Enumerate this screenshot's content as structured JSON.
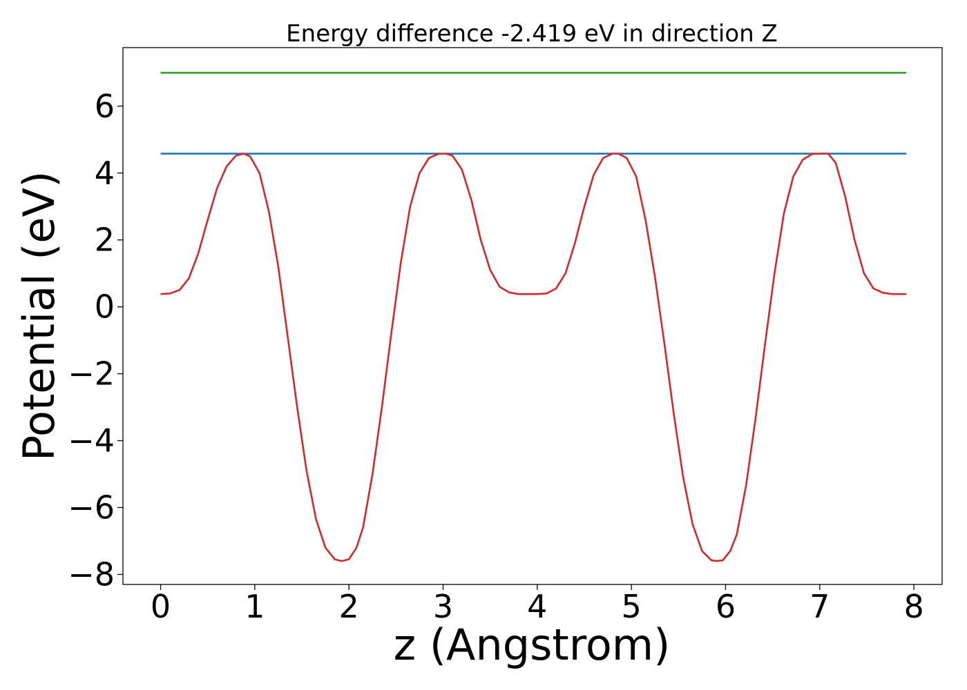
{
  "chart_data": {
    "type": "line",
    "title": "Energy difference -2.419 eV in direction Z",
    "xlabel": "z (Angstrom)",
    "ylabel": "Potential (eV)",
    "xlim": [
      -0.4,
      8.3
    ],
    "ylim": [
      -8.3,
      7.75
    ],
    "xticks": [
      0,
      1,
      2,
      3,
      4,
      5,
      6,
      7,
      8
    ],
    "xtick_labels": [
      "0",
      "1",
      "2",
      "3",
      "4",
      "5",
      "6",
      "7",
      "8"
    ],
    "yticks": [
      -8,
      -6,
      -4,
      -2,
      0,
      2,
      4,
      6
    ],
    "ytick_labels": [
      "−8",
      "−6",
      "−4",
      "−2",
      "0",
      "2",
      "4",
      "6"
    ],
    "grid": false,
    "series": [
      {
        "color": "#2ca02c",
        "x": [
          0,
          7.92
        ],
        "y": [
          7.0,
          7.0
        ]
      },
      {
        "color": "#1f77b4",
        "x": [
          0,
          7.92
        ],
        "y": [
          4.58,
          4.58
        ]
      },
      {
        "color": "#d62728",
        "x": [
          0,
          0.1,
          0.2,
          0.3,
          0.4,
          0.5,
          0.6,
          0.7,
          0.8,
          0.88,
          0.95,
          1.05,
          1.15,
          1.25,
          1.35,
          1.45,
          1.55,
          1.65,
          1.75,
          1.85,
          1.92,
          2.0,
          2.08,
          2.15,
          2.25,
          2.35,
          2.45,
          2.55,
          2.65,
          2.75,
          2.85,
          2.95,
          3.03,
          3.1,
          3.2,
          3.3,
          3.4,
          3.5,
          3.6,
          3.7,
          3.8,
          3.9,
          4.0,
          4.1,
          4.2,
          4.3,
          4.4,
          4.5,
          4.6,
          4.7,
          4.8,
          4.86,
          4.95,
          5.05,
          5.15,
          5.25,
          5.35,
          5.45,
          5.55,
          5.65,
          5.75,
          5.85,
          5.91,
          5.97,
          6.05,
          6.12,
          6.22,
          6.32,
          6.42,
          6.52,
          6.62,
          6.72,
          6.82,
          6.92,
          7.02,
          7.09,
          7.17,
          7.27,
          7.37,
          7.47,
          7.57,
          7.67,
          7.77,
          7.87,
          7.92
        ],
        "y": [
          0.38,
          0.4,
          0.5,
          0.85,
          1.6,
          2.6,
          3.55,
          4.2,
          4.52,
          4.58,
          4.5,
          4.0,
          2.85,
          1.2,
          -0.9,
          -3.0,
          -4.9,
          -6.35,
          -7.2,
          -7.55,
          -7.6,
          -7.55,
          -7.2,
          -6.6,
          -5.0,
          -3.0,
          -0.8,
          1.3,
          3.0,
          4.0,
          4.45,
          4.57,
          4.58,
          4.52,
          4.1,
          3.2,
          2.0,
          1.1,
          0.6,
          0.43,
          0.38,
          0.38,
          0.38,
          0.4,
          0.55,
          1.0,
          1.9,
          3.0,
          3.95,
          4.45,
          4.58,
          4.58,
          4.45,
          3.9,
          2.6,
          0.9,
          -1.1,
          -3.2,
          -5.1,
          -6.5,
          -7.3,
          -7.58,
          -7.6,
          -7.58,
          -7.3,
          -6.8,
          -5.3,
          -3.3,
          -1.1,
          1.0,
          2.8,
          3.9,
          4.4,
          4.57,
          4.58,
          4.58,
          4.3,
          3.3,
          2.0,
          1.0,
          0.55,
          0.42,
          0.38,
          0.38,
          0.38
        ]
      }
    ]
  }
}
